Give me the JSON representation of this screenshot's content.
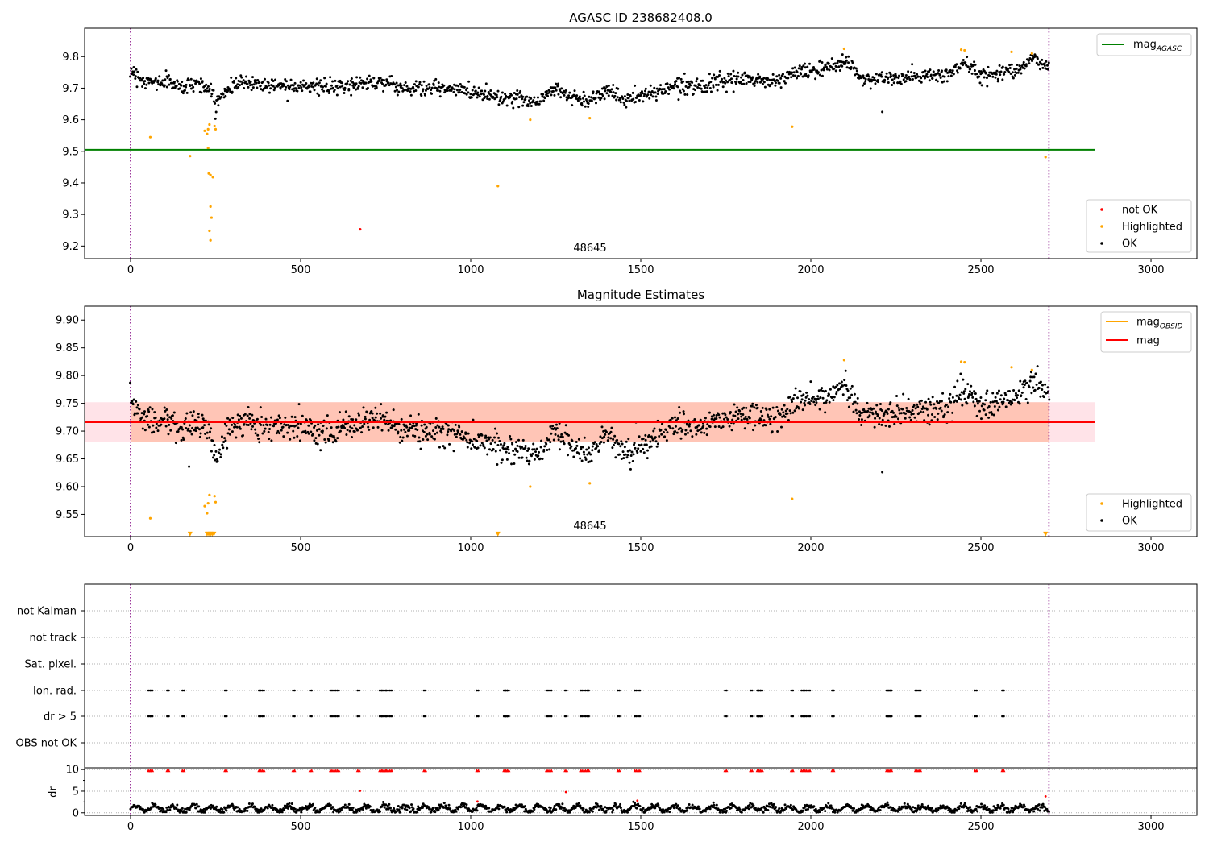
{
  "chart_data": [
    {
      "type": "scatter",
      "title": "AGASC ID 238682408.0",
      "obsid_label": "48645",
      "xlim": [
        -135,
        3135
      ],
      "ylim": [
        9.16,
        9.89
      ],
      "x_ticks": [
        0,
        500,
        1000,
        1500,
        2000,
        2500,
        3000
      ],
      "y_ticks": [
        9.2,
        9.3,
        9.4,
        9.5,
        9.6,
        9.7,
        9.8
      ],
      "y_tick_labels": [
        "9.2",
        "9.3",
        "9.4",
        "9.5",
        "9.6",
        "9.7",
        "9.8"
      ],
      "obs_boundaries": [
        0,
        2700
      ],
      "hlines": [
        {
          "name": "mag",
          "sub": "AGASC",
          "y": 9.505,
          "x_range": [
            -135,
            2835
          ],
          "color": "#008000"
        }
      ],
      "legend_top": [
        {
          "label": "mag",
          "sub": "AGASC",
          "color": "#008000"
        }
      ],
      "legend_bottom": [
        {
          "label": "not OK",
          "color": "#ff0000"
        },
        {
          "label": "Highlighted",
          "color": "#ffa500"
        },
        {
          "label": "OK",
          "color": "#000000"
        }
      ],
      "series": [
        {
          "name": "OK",
          "color": "#000000",
          "type": "generated",
          "profile": [
            [
              0,
              9.76
            ],
            [
              40,
              9.72
            ],
            [
              120,
              9.72
            ],
            [
              150,
              9.7
            ],
            [
              190,
              9.72
            ],
            [
              230,
              9.7
            ],
            [
              250,
              9.65
            ],
            [
              270,
              9.68
            ],
            [
              300,
              9.71
            ],
            [
              340,
              9.72
            ],
            [
              400,
              9.71
            ],
            [
              500,
              9.71
            ],
            [
              600,
              9.7
            ],
            [
              700,
              9.72
            ],
            [
              750,
              9.72
            ],
            [
              800,
              9.7
            ],
            [
              900,
              9.7
            ],
            [
              1000,
              9.69
            ],
            [
              1100,
              9.67
            ],
            [
              1200,
              9.66
            ],
            [
              1250,
              9.7
            ],
            [
              1300,
              9.67
            ],
            [
              1350,
              9.66
            ],
            [
              1400,
              9.7
            ],
            [
              1450,
              9.66
            ],
            [
              1550,
              9.69
            ],
            [
              1600,
              9.71
            ],
            [
              1700,
              9.71
            ],
            [
              1800,
              9.73
            ],
            [
              1900,
              9.72
            ],
            [
              1950,
              9.75
            ],
            [
              2050,
              9.76
            ],
            [
              2100,
              9.79
            ],
            [
              2150,
              9.73
            ],
            [
              2250,
              9.73
            ],
            [
              2350,
              9.74
            ],
            [
              2400,
              9.74
            ],
            [
              2450,
              9.78
            ],
            [
              2500,
              9.74
            ],
            [
              2600,
              9.76
            ],
            [
              2650,
              9.79
            ],
            [
              2700,
              9.77
            ]
          ],
          "n": 1400,
          "noise": 0.012,
          "x_range": [
            0,
            2700
          ]
        },
        {
          "name": "Highlighted",
          "color": "#ffa500",
          "points": [
            [
              58,
              9.545
            ],
            [
              175,
              9.485
            ],
            [
              218,
              9.565
            ],
            [
              225,
              9.555
            ],
            [
              228,
              9.57
            ],
            [
              232,
              9.585
            ],
            [
              228,
              9.51
            ],
            [
              230,
              9.43
            ],
            [
              235,
              9.425
            ],
            [
              242,
              9.418
            ],
            [
              235,
              9.325
            ],
            [
              238,
              9.29
            ],
            [
              232,
              9.248
            ],
            [
              235,
              9.218
            ],
            [
              247,
              9.58
            ],
            [
              250,
              9.57
            ],
            [
              1080,
              9.39
            ],
            [
              1175,
              9.6
            ],
            [
              1350,
              9.605
            ],
            [
              1945,
              9.578
            ],
            [
              2098,
              9.825
            ],
            [
              2442,
              9.822
            ],
            [
              2452,
              9.82
            ],
            [
              2590,
              9.815
            ],
            [
              2650,
              9.81
            ],
            [
              2690,
              9.482
            ]
          ]
        },
        {
          "name": "not OK",
          "color": "#ff0000",
          "points": [
            [
              675,
              9.253
            ]
          ]
        },
        {
          "name": "OK",
          "color": "#000000",
          "points": [
            [
              2210,
              9.625
            ]
          ]
        }
      ]
    },
    {
      "type": "scatter",
      "title": "Magnitude Estimates",
      "obsid_label": "48645",
      "xlim": [
        -135,
        3135
      ],
      "ylim": [
        9.51,
        9.925
      ],
      "x_ticks": [
        0,
        500,
        1000,
        1500,
        2000,
        2500,
        3000
      ],
      "y_ticks": [
        9.55,
        9.6,
        9.65,
        9.7,
        9.75,
        9.8,
        9.85,
        9.9
      ],
      "y_tick_labels": [
        "9.55",
        "9.60",
        "9.65",
        "9.70",
        "9.75",
        "9.80",
        "9.85",
        "9.90"
      ],
      "obs_boundaries": [
        0,
        2700
      ],
      "band_outer": {
        "y": [
          9.68,
          9.752
        ],
        "x_range": [
          -135,
          2835
        ],
        "color": "#ffc0cb"
      },
      "band_inner": {
        "y": [
          9.68,
          9.752
        ],
        "x_range": [
          0,
          2700
        ],
        "color": "#ffa07a"
      },
      "hlines": [
        {
          "name": "mag",
          "y": 9.716,
          "x_range": [
            -135,
            2835
          ],
          "color": "#ff0000"
        }
      ],
      "legend_top": [
        {
          "label": "mag",
          "sub": "OBSID",
          "color": "#ffa500"
        },
        {
          "label": "mag",
          "color": "#ff0000"
        }
      ],
      "legend_bottom": [
        {
          "label": "Highlighted",
          "color": "#ffa500"
        },
        {
          "label": "OK",
          "color": "#000000"
        }
      ],
      "series": [
        {
          "name": "OK",
          "color": "#000000",
          "type": "generated",
          "profile": [
            [
              0,
              9.76
            ],
            [
              40,
              9.72
            ],
            [
              120,
              9.72
            ],
            [
              150,
              9.7
            ],
            [
              190,
              9.72
            ],
            [
              230,
              9.7
            ],
            [
              250,
              9.65
            ],
            [
              270,
              9.68
            ],
            [
              300,
              9.71
            ],
            [
              340,
              9.72
            ],
            [
              400,
              9.71
            ],
            [
              500,
              9.71
            ],
            [
              600,
              9.7
            ],
            [
              700,
              9.72
            ],
            [
              750,
              9.72
            ],
            [
              800,
              9.7
            ],
            [
              900,
              9.7
            ],
            [
              1000,
              9.69
            ],
            [
              1100,
              9.67
            ],
            [
              1200,
              9.66
            ],
            [
              1250,
              9.7
            ],
            [
              1300,
              9.67
            ],
            [
              1350,
              9.66
            ],
            [
              1400,
              9.7
            ],
            [
              1450,
              9.66
            ],
            [
              1550,
              9.69
            ],
            [
              1600,
              9.71
            ],
            [
              1700,
              9.71
            ],
            [
              1800,
              9.73
            ],
            [
              1900,
              9.72
            ],
            [
              1950,
              9.75
            ],
            [
              2050,
              9.76
            ],
            [
              2100,
              9.79
            ],
            [
              2150,
              9.73
            ],
            [
              2250,
              9.73
            ],
            [
              2350,
              9.74
            ],
            [
              2400,
              9.74
            ],
            [
              2450,
              9.78
            ],
            [
              2500,
              9.74
            ],
            [
              2600,
              9.76
            ],
            [
              2650,
              9.79
            ],
            [
              2700,
              9.77
            ]
          ],
          "n": 1400,
          "noise": 0.012,
          "x_range": [
            0,
            2700
          ]
        },
        {
          "name": "Highlighted",
          "color": "#ffa500",
          "points": [
            [
              58,
              9.543
            ],
            [
              218,
              9.565
            ],
            [
              225,
              9.552
            ],
            [
              228,
              9.57
            ],
            [
              232,
              9.585
            ],
            [
              247,
              9.583
            ],
            [
              250,
              9.572
            ],
            [
              1175,
              9.6
            ],
            [
              1350,
              9.606
            ],
            [
              1945,
              9.578
            ],
            [
              2098,
              9.828
            ],
            [
              2442,
              9.825
            ],
            [
              2452,
              9.824
            ],
            [
              2590,
              9.815
            ],
            [
              2650,
              9.81
            ]
          ]
        },
        {
          "name": "Highlighted",
          "color": "#ffa500",
          "marker": "triangle-down",
          "points": [
            [
              175,
              9.513
            ],
            [
              225,
              9.513
            ],
            [
              230,
              9.513
            ],
            [
              235,
              9.513
            ],
            [
              240,
              9.513
            ],
            [
              245,
              9.513
            ],
            [
              1080,
              9.513
            ],
            [
              2690,
              9.513
            ]
          ]
        },
        {
          "name": "OK",
          "color": "#000000",
          "points": [
            [
              2210,
              9.626
            ],
            [
              172,
              9.636
            ]
          ]
        }
      ]
    },
    {
      "type": "scatter",
      "title": "",
      "xlim": [
        -135,
        3135
      ],
      "categories": [
        "not Kalman",
        "not track",
        "Sat. pixel.",
        "Ion. rad.",
        "dr > 5",
        "OBS not OK"
      ],
      "obs_boundaries": [
        0,
        2700
      ],
      "flag_x": [
        55,
        62,
        110,
        155,
        280,
        380,
        390,
        480,
        530,
        590,
        600,
        610,
        670,
        735,
        742,
        748,
        755,
        765,
        865,
        1020,
        1100,
        1105,
        1110,
        1225,
        1235,
        1280,
        1325,
        1335,
        1345,
        1435,
        1485,
        1495,
        1750,
        1825,
        1845,
        1850,
        1855,
        1945,
        1975,
        1985,
        1995,
        2065,
        2225,
        2230,
        2235,
        2310,
        2320,
        2485,
        2565
      ],
      "flag_rows": {
        "Ion. rad.": true,
        "dr > 5": true
      }
    },
    {
      "type": "scatter",
      "ylabel": "dr",
      "xlim": [
        -135,
        3135
      ],
      "ylim": [
        -0.6,
        10.4
      ],
      "x_ticks": [
        0,
        500,
        1000,
        1500,
        2000,
        2500,
        3000
      ],
      "y_ticks": [
        0,
        5,
        10
      ],
      "y_tick_labels": [
        "0",
        "5",
        "10"
      ],
      "obs_boundaries": [
        0,
        2700
      ],
      "series": [
        {
          "name": "dr",
          "color": "#000000",
          "type": "generated-dr",
          "n": 1400,
          "x_range": [
            0,
            2700
          ]
        },
        {
          "name": "dr > 10",
          "color": "#ff0000",
          "marker": "triangle-up",
          "y": 9.8,
          "x_from": "flag_x"
        },
        {
          "name": "dr outliers",
          "color": "#ff0000",
          "points": [
            [
              675,
              5.1
            ],
            [
              1280,
              4.8
            ],
            [
              1490,
              2.8
            ],
            [
              1020,
              2.6
            ],
            [
              2690,
              3.8
            ]
          ]
        }
      ]
    }
  ]
}
